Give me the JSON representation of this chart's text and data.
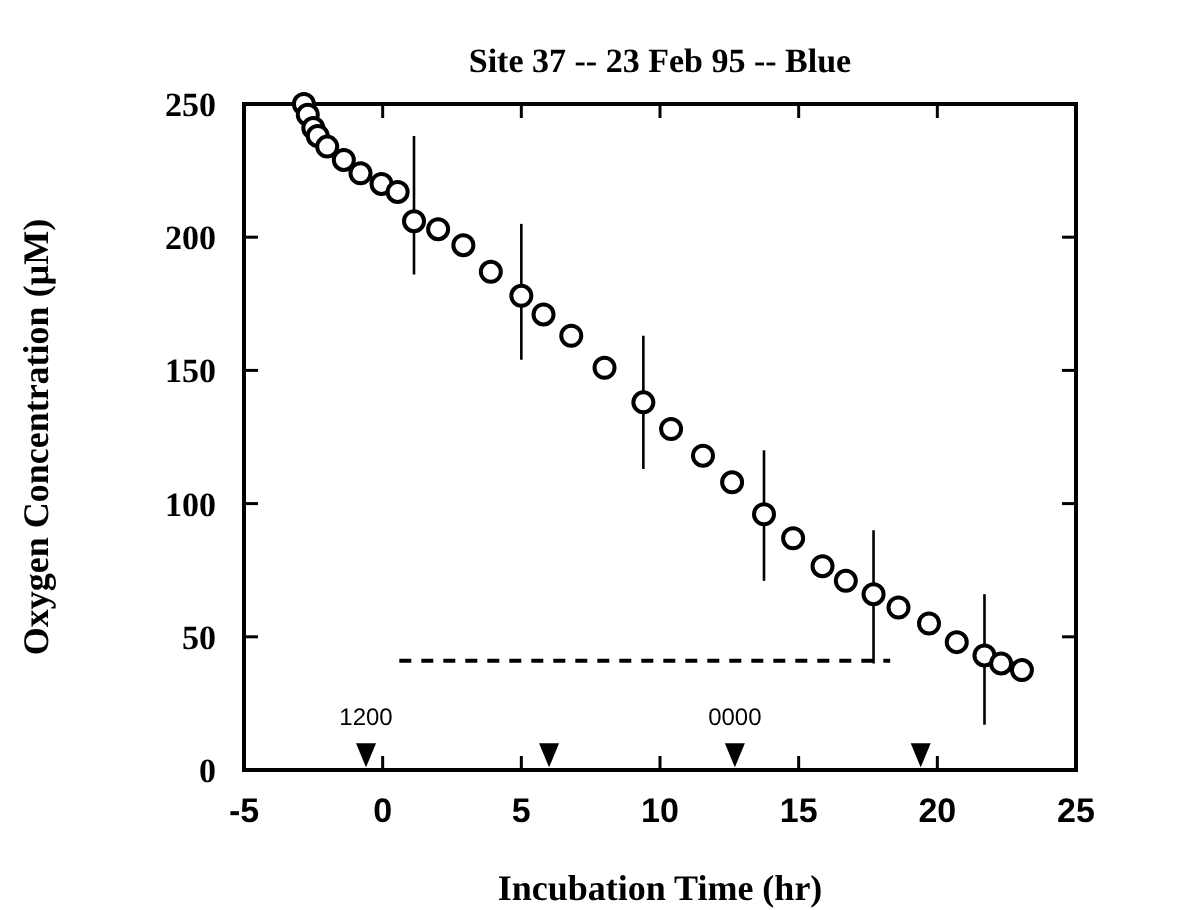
{
  "chart_data": {
    "type": "scatter",
    "title": "Site 37 -- 23 Feb 95 -- Blue",
    "xlabel": "Incubation Time (hr)",
    "ylabel": "Oxygen Concentration (µM)",
    "xlim": [
      -5,
      25
    ],
    "xticks": [
      -5,
      0,
      5,
      10,
      15,
      20,
      25
    ],
    "ylim": [
      0,
      250
    ],
    "yticks": [
      0,
      50,
      100,
      150,
      200,
      250
    ],
    "grid": false,
    "series": [
      {
        "marker": "circle",
        "color": "#000000",
        "x": [
          -2.84,
          -2.7,
          -2.5,
          -2.34,
          -2.0,
          -1.4,
          -0.8,
          -0.04,
          0.54,
          1.13,
          2.0,
          2.91,
          3.9,
          5.0,
          5.8,
          6.8,
          8.0,
          9.4,
          10.4,
          11.55,
          12.6,
          13.75,
          14.8,
          15.86,
          16.7,
          17.7,
          18.6,
          19.7,
          20.7,
          21.7,
          22.3,
          23.05
        ],
        "values": [
          250,
          246,
          241,
          238,
          234,
          229,
          224,
          220,
          217,
          206,
          203,
          197,
          187,
          178,
          171,
          163,
          151,
          138,
          128,
          118,
          108,
          96,
          87,
          76.5,
          71,
          66,
          61,
          55,
          48,
          43,
          40,
          37.5
        ],
        "errors": [
          null,
          null,
          null,
          null,
          null,
          null,
          null,
          null,
          null,
          [
            186,
            238
          ],
          null,
          null,
          null,
          [
            154,
            205
          ],
          null,
          null,
          null,
          [
            113,
            163
          ],
          null,
          null,
          null,
          [
            71,
            120
          ],
          null,
          null,
          null,
          [
            40,
            90
          ],
          null,
          null,
          null,
          [
            17,
            66
          ],
          null,
          null
        ]
      },
      {
        "type": "line",
        "line_style": "dashed",
        "color": "#000000",
        "x": [
          0.6,
          18.3
        ],
        "values": [
          41,
          41
        ]
      },
      {
        "marker": "triangle",
        "color": "#000000",
        "x": [
          -0.6,
          6.0,
          12.7,
          19.4
        ],
        "values": [
          7,
          7,
          7,
          7
        ]
      }
    ],
    "annotations": [
      {
        "text": "1200",
        "x": -0.6,
        "y": 7
      },
      {
        "text": "0000",
        "x": 12.7,
        "y": 7
      }
    ]
  }
}
